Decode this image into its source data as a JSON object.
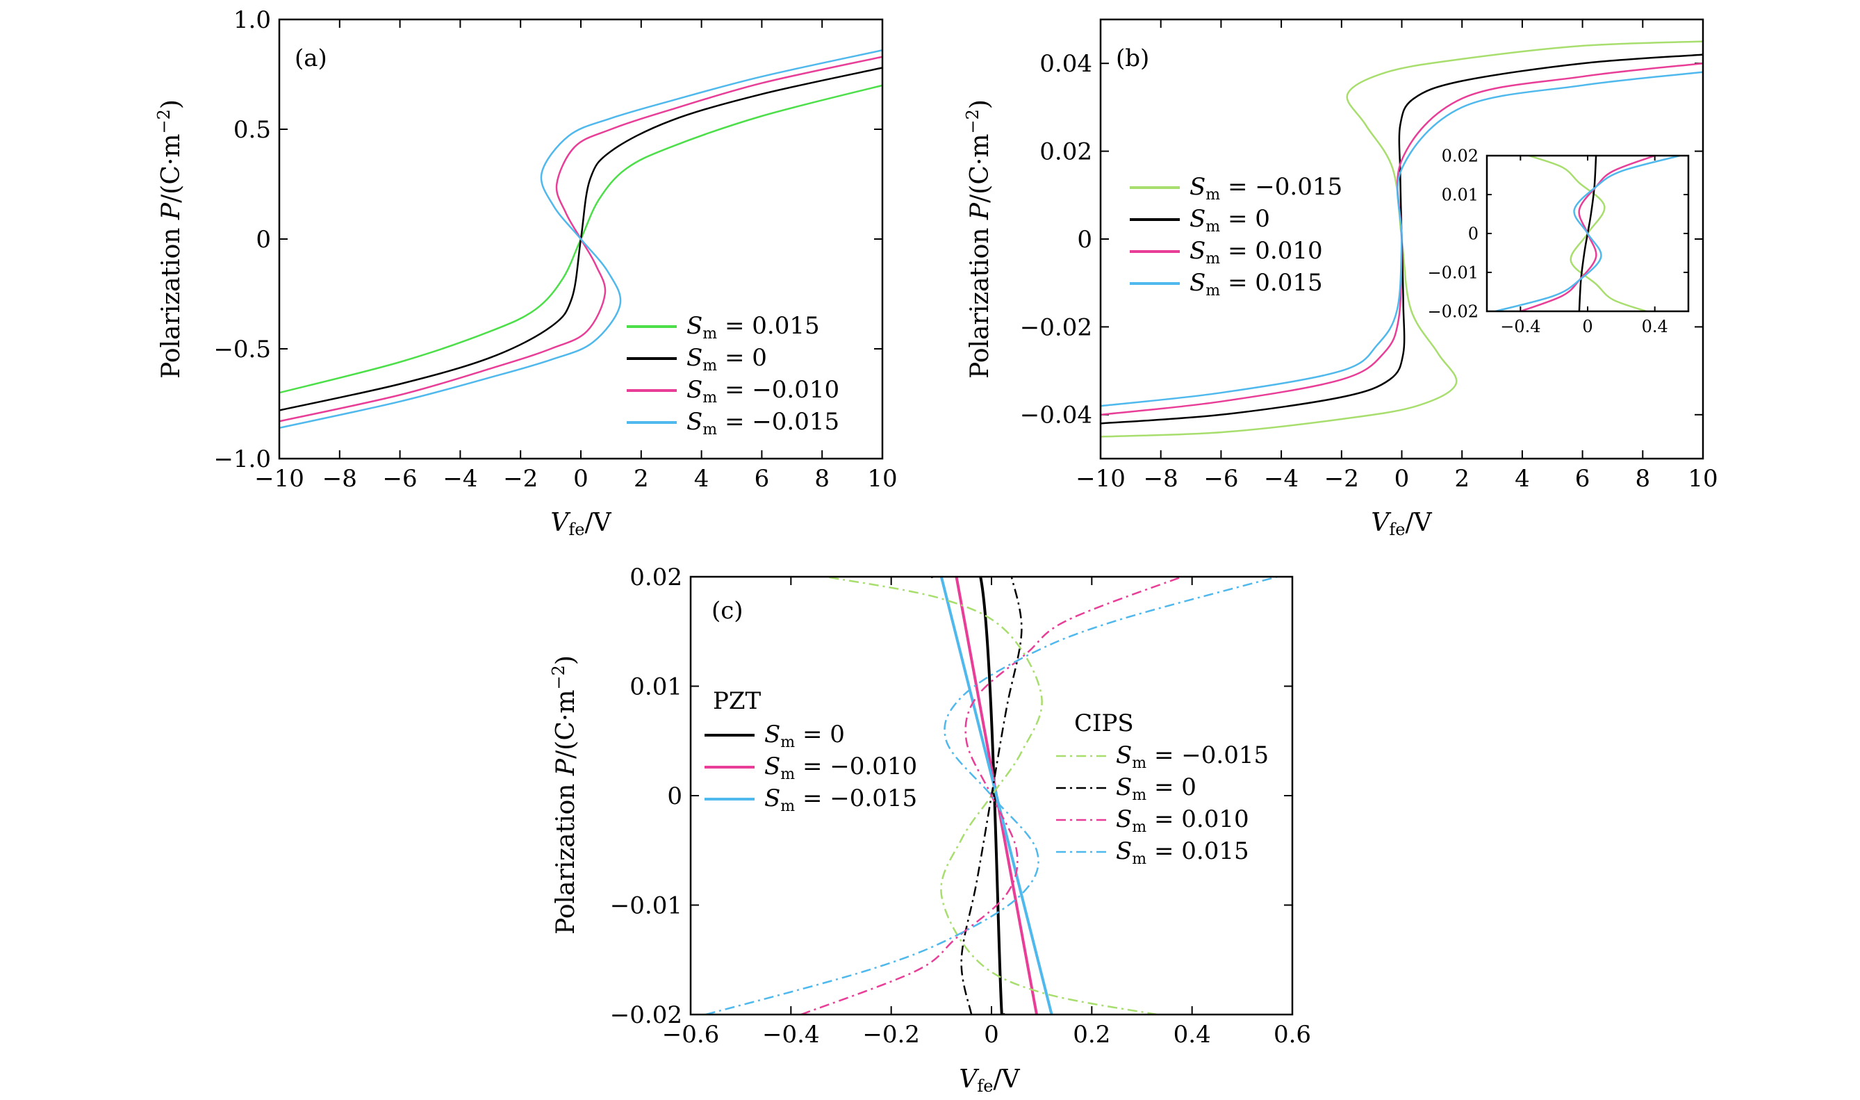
{
  "figure": {
    "panels": {
      "a": {
        "label": "(a)",
        "xlabel_main": "V",
        "xlabel_sub": "fe",
        "xlabel_tail": "/V",
        "ylabel_prefix": "Polarization ",
        "ylabel_var": "P",
        "ylabel_unit": "/(C·m",
        "ylabel_exp": "−2",
        "ylabel_close": ")"
      },
      "b": {
        "label": "(b)",
        "xlabel_main": "V",
        "xlabel_sub": "fe",
        "xlabel_tail": "/V",
        "ylabel_prefix": "Polarization ",
        "ylabel_var": "P",
        "ylabel_unit": "/(C·m",
        "ylabel_exp": "−2",
        "ylabel_close": ")"
      },
      "c": {
        "label": "(c)",
        "xlabel_main": "V",
        "xlabel_sub": "fe",
        "xlabel_tail": "/V",
        "ylabel_prefix": "Polarization ",
        "ylabel_var": "P",
        "ylabel_unit": "/(C·m",
        "ylabel_exp": "−2",
        "ylabel_close": ")",
        "group_pzt": "PZT",
        "group_cips": "CIPS"
      }
    }
  },
  "chart_data": [
    {
      "panel": "a",
      "type": "line",
      "xlabel": "Vfe/V",
      "ylabel": "Polarization P/(C·m−2)",
      "xlim": [
        -10,
        10
      ],
      "ylim": [
        -1.0,
        1.0
      ],
      "xticks": [
        -10,
        -8,
        -6,
        -4,
        -2,
        0,
        2,
        4,
        6,
        8,
        10
      ],
      "xtick_labels": [
        "−10",
        "−8",
        "−6",
        "−4",
        "−2",
        "0",
        "2",
        "4",
        "6",
        "8",
        "10"
      ],
      "yticks": [
        -1.0,
        -0.5,
        0,
        0.5,
        1.0
      ],
      "ytick_labels": [
        "−1.0",
        "−0.5",
        "0",
        "0.5",
        "1.0"
      ],
      "legend_position": "lower-right",
      "series": [
        {
          "name": "Sm = 0.015",
          "sm_label": "S",
          "sm_sub": "m",
          "sm_val": " = 0.015",
          "color": "#4ddf4a",
          "x": [
            -10,
            -6,
            -3,
            -1.5,
            -0.6,
            0,
            0.6,
            1.5,
            3,
            6,
            10
          ],
          "y": [
            -0.7,
            -0.56,
            -0.42,
            -0.32,
            -0.18,
            0,
            0.18,
            0.32,
            0.42,
            0.56,
            0.7
          ]
        },
        {
          "name": "Sm = 0",
          "sm_label": "S",
          "sm_sub": "m",
          "sm_val": " = 0",
          "color": "#000000",
          "x": [
            -10,
            -6,
            -3,
            -1,
            -0.3,
            0,
            0.3,
            1,
            3,
            6,
            10
          ],
          "y": [
            -0.78,
            -0.66,
            -0.54,
            -0.4,
            -0.27,
            0,
            0.27,
            0.4,
            0.54,
            0.66,
            0.78
          ]
        },
        {
          "name": "Sm = −0.010",
          "sm_label": "S",
          "sm_sub": "m",
          "sm_val": " = −0.010",
          "color": "#e83e97",
          "x": [
            -10,
            -6,
            -3,
            -1,
            0.2,
            0.8,
            0.5,
            0,
            -0.5,
            -0.8,
            -0.2,
            1,
            3,
            6,
            10
          ],
          "y": [
            -0.83,
            -0.71,
            -0.59,
            -0.5,
            -0.42,
            -0.25,
            -0.12,
            0,
            0.12,
            0.25,
            0.42,
            0.5,
            0.59,
            0.71,
            0.83
          ]
        },
        {
          "name": "Sm = −0.015",
          "sm_label": "S",
          "sm_sub": "m",
          "sm_val": " = −0.015",
          "color": "#4fb8ec",
          "x": [
            -10,
            -6,
            -3,
            -1,
            0.4,
            1.3,
            0.9,
            0,
            -0.9,
            -1.3,
            -0.4,
            1,
            3,
            6,
            10
          ],
          "y": [
            -0.86,
            -0.74,
            -0.63,
            -0.55,
            -0.47,
            -0.3,
            -0.15,
            0,
            0.15,
            0.3,
            0.47,
            0.55,
            0.63,
            0.74,
            0.86
          ]
        }
      ]
    },
    {
      "panel": "b",
      "type": "line",
      "xlabel": "Vfe/V",
      "ylabel": "Polarization P/(C·m−2)",
      "xlim": [
        -10,
        10
      ],
      "ylim": [
        -0.05,
        0.05
      ],
      "xticks": [
        -10,
        -8,
        -6,
        -4,
        -2,
        0,
        2,
        4,
        6,
        8,
        10
      ],
      "xtick_labels": [
        "−10",
        "−8",
        "−6",
        "−4",
        "−2",
        "0",
        "2",
        "4",
        "6",
        "8",
        "10"
      ],
      "yticks": [
        -0.04,
        -0.02,
        0,
        0.02,
        0.04
      ],
      "ytick_labels": [
        "−0.04",
        "−0.02",
        "0",
        "0.02",
        "0.04"
      ],
      "legend_position": "center-left",
      "series": [
        {
          "name": "Sm = −0.015",
          "sm_label": "S",
          "sm_sub": "m",
          "sm_val": " = −0.015",
          "color": "#a8de6e",
          "x": [
            -10,
            -6,
            -2,
            0.5,
            1.8,
            1.2,
            0.3,
            0,
            -0.3,
            -1.2,
            -1.8,
            -0.5,
            2,
            6,
            10
          ],
          "y": [
            -0.045,
            -0.044,
            -0.041,
            -0.038,
            -0.033,
            -0.026,
            -0.016,
            0,
            0.016,
            0.026,
            0.033,
            0.038,
            0.041,
            0.044,
            0.045
          ]
        },
        {
          "name": "Sm = 0",
          "sm_label": "S",
          "sm_sub": "m",
          "sm_val": " = 0",
          "color": "#000000",
          "x": [
            -10,
            -6,
            -2,
            -0.4,
            0.05,
            0.05,
            0.02,
            0,
            -0.02,
            -0.05,
            -0.05,
            0.4,
            2,
            6,
            10
          ],
          "y": [
            -0.042,
            -0.04,
            -0.036,
            -0.032,
            -0.026,
            -0.015,
            -0.005,
            0,
            0.005,
            0.015,
            0.026,
            0.032,
            0.036,
            0.04,
            0.042
          ]
        },
        {
          "name": "Sm = 0.010",
          "sm_label": "S",
          "sm_sub": "m",
          "sm_val": " = 0.010",
          "color": "#e83e97",
          "x": [
            -10,
            -6,
            -2,
            -0.6,
            -0.1,
            0,
            0,
            2,
            6,
            10
          ],
          "y": [
            -0.04,
            -0.037,
            -0.032,
            -0.026,
            -0.018,
            0,
            0.018,
            0.032,
            0.037,
            0.04
          ]
        },
        {
          "name": "Sm = 0.015",
          "sm_label": "S",
          "sm_sub": "m",
          "sm_val": " = 0.015",
          "color": "#4fb8ec",
          "x": [
            -10,
            -6,
            -2,
            -0.8,
            -0.15,
            0,
            0,
            2,
            6,
            10
          ],
          "y": [
            -0.038,
            -0.035,
            -0.03,
            -0.024,
            -0.016,
            0,
            0.016,
            0.03,
            0.035,
            0.038
          ]
        }
      ],
      "inset": {
        "xlim": [
          -0.6,
          0.6
        ],
        "ylim": [
          -0.02,
          0.02
        ],
        "xticks": [
          -0.4,
          0,
          0.4
        ],
        "xtick_labels": [
          "−0.4",
          "0",
          "0.4"
        ],
        "yticks": [
          -0.02,
          -0.01,
          0,
          0.01,
          0.02
        ],
        "ytick_labels": [
          "−0.02",
          "−0.01",
          "0",
          "0.01",
          "0.02"
        ],
        "series": [
          {
            "color": "#a8de6e",
            "x": [
              0.35,
              0.15,
              0.05,
              -0.1,
              0,
              0.1,
              -0.05,
              -0.15,
              -0.35
            ],
            "y": [
              -0.02,
              -0.017,
              -0.013,
              -0.007,
              0,
              0.007,
              0.013,
              0.017,
              0.02
            ]
          },
          {
            "color": "#000000",
            "x": [
              -0.05,
              -0.04,
              -0.02,
              0,
              0.02,
              0.04,
              0.05
            ],
            "y": [
              -0.02,
              -0.012,
              -0.005,
              0,
              0.005,
              0.012,
              0.02
            ]
          },
          {
            "color": "#e83e97",
            "x": [
              -0.4,
              -0.15,
              -0.05,
              0.05,
              0,
              -0.05,
              0.05,
              0.15,
              0.4
            ],
            "y": [
              -0.02,
              -0.016,
              -0.012,
              -0.006,
              0,
              0.006,
              0.012,
              0.016,
              0.02
            ]
          },
          {
            "color": "#4fb8ec",
            "x": [
              -0.55,
              -0.2,
              -0.05,
              0.08,
              0,
              -0.08,
              0.05,
              0.2,
              0.55
            ],
            "y": [
              -0.02,
              -0.016,
              -0.012,
              -0.006,
              0,
              0.006,
              0.012,
              0.016,
              0.02
            ]
          }
        ]
      }
    },
    {
      "panel": "c",
      "type": "line",
      "xlabel": "Vfe/V",
      "ylabel": "Polarization P/(C·m−2)",
      "xlim": [
        -0.6,
        0.6
      ],
      "ylim": [
        -0.02,
        0.02
      ],
      "xticks": [
        -0.6,
        -0.4,
        -0.2,
        0,
        0.2,
        0.4,
        0.6
      ],
      "xtick_labels": [
        "−0.6",
        "−0.4",
        "−0.2",
        "0",
        "0.2",
        "0.4",
        "0.6"
      ],
      "yticks": [
        -0.02,
        -0.01,
        0,
        0.01,
        0.02
      ],
      "ytick_labels": [
        "−0.02",
        "−0.01",
        "0",
        "0.01",
        "0.02"
      ],
      "legend_groups": [
        "PZT",
        "CIPS"
      ],
      "series": [
        {
          "group": "PZT",
          "name": "Sm = 0",
          "sm_label": "S",
          "sm_sub": "m",
          "sm_val": " = 0",
          "color": "#000000",
          "style": "solid",
          "x": [
            -0.12,
            -0.02,
            0.02,
            0.025
          ],
          "y": [
            0.02,
            0.0195,
            -0.0195,
            -0.02
          ]
        },
        {
          "group": "PZT",
          "name": "Sm = −0.010",
          "sm_label": "S",
          "sm_sub": "m",
          "sm_val": " = −0.010",
          "color": "#e83e97",
          "style": "solid",
          "x": [
            -0.07,
            0.09
          ],
          "y": [
            0.02,
            -0.02
          ]
        },
        {
          "group": "PZT",
          "name": "Sm = −0.015",
          "sm_label": "S",
          "sm_sub": "m",
          "sm_val": " = −0.015",
          "color": "#4fb8ec",
          "style": "solid",
          "x": [
            -0.1,
            0.12
          ],
          "y": [
            0.02,
            -0.02
          ]
        },
        {
          "group": "CIPS",
          "name": "Sm = −0.015",
          "sm_label": "S",
          "sm_sub": "m",
          "sm_val": " = −0.015",
          "color": "#a8de6e",
          "style": "dashdot",
          "x": [
            0.33,
            0.1,
            -0.03,
            -0.1,
            -0.06,
            0,
            0.06,
            0.1,
            0.03,
            -0.1,
            -0.33
          ],
          "y": [
            -0.02,
            -0.018,
            -0.015,
            -0.009,
            -0.004,
            0,
            0.004,
            0.009,
            0.015,
            0.018,
            0.02
          ]
        },
        {
          "group": "CIPS",
          "name": "Sm = 0",
          "sm_label": "S",
          "sm_sub": "m",
          "sm_val": " = 0",
          "color": "#000000",
          "style": "dashdot",
          "x": [
            -0.04,
            -0.06,
            -0.03,
            0,
            0.03,
            0.06,
            0.04
          ],
          "y": [
            -0.02,
            -0.015,
            -0.008,
            0,
            0.008,
            0.015,
            0.02
          ]
        },
        {
          "group": "CIPS",
          "name": "Sm = 0.010",
          "sm_label": "S",
          "sm_sub": "m",
          "sm_val": " = 0.010",
          "color": "#e83e97",
          "style": "dashdot",
          "x": [
            -0.38,
            -0.15,
            -0.07,
            0.03,
            0.05,
            0,
            -0.05,
            -0.03,
            0.07,
            0.15,
            0.38
          ],
          "y": [
            -0.02,
            -0.016,
            -0.013,
            -0.009,
            -0.005,
            0,
            0.005,
            0.009,
            0.013,
            0.016,
            0.02
          ]
        },
        {
          "group": "CIPS",
          "name": "Sm = 0.015",
          "sm_label": "S",
          "sm_sub": "m",
          "sm_val": " = 0.015",
          "color": "#4fb8ec",
          "style": "dashdot",
          "x": [
            -0.57,
            -0.25,
            -0.08,
            0.06,
            0.09,
            0,
            -0.09,
            -0.06,
            0.08,
            0.25,
            0.57
          ],
          "y": [
            -0.02,
            -0.016,
            -0.013,
            -0.009,
            -0.005,
            0,
            0.005,
            0.009,
            0.013,
            0.016,
            0.02
          ]
        }
      ]
    }
  ]
}
